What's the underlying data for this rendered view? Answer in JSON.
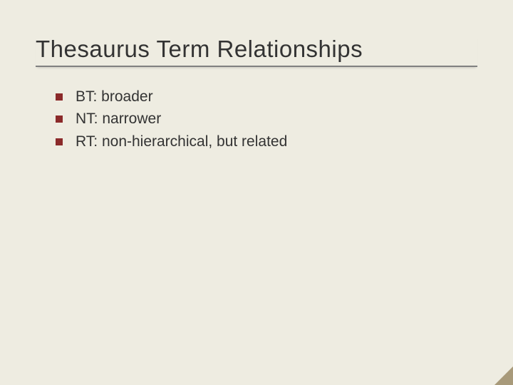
{
  "slide": {
    "title": "Thesaurus Term Relationships",
    "title_fontsize": 33,
    "title_color": "#333333",
    "underline_color": "#808080",
    "background_color": "#eeece1",
    "bullets": [
      {
        "text": "BT: broader"
      },
      {
        "text": "NT: narrower"
      },
      {
        "text": "RT: non-hierarchical, but related"
      }
    ],
    "bullet_marker_color": "#8b2a2a",
    "bullet_marker_size": 10,
    "bullet_fontsize": 21,
    "bullet_text_color": "#333333",
    "corner_accent_color": "#a89a7a"
  }
}
